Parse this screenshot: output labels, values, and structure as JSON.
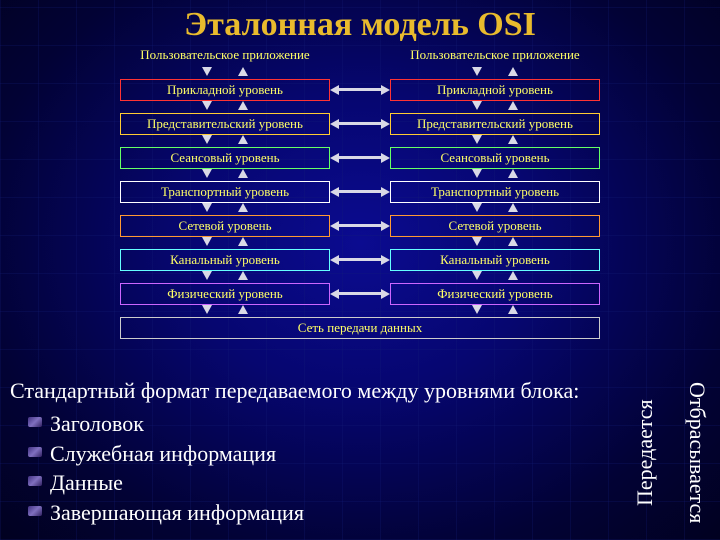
{
  "title": {
    "text": "Эталонная модель OSI",
    "color": "#e9bb2d",
    "fontsize": 34
  },
  "app_label": "Пользовательское приложение",
  "layers": [
    {
      "name": "Прикладной уровень",
      "border": "#ff3333"
    },
    {
      "name": "Представительский уровень",
      "border": "#ffcc33"
    },
    {
      "name": "Сеансовый уровень",
      "border": "#66ff66"
    },
    {
      "name": "Транспортный уровень",
      "border": "#ffffff"
    },
    {
      "name": "Сетевой уровень",
      "border": "#ff9933"
    },
    {
      "name": "Канальный уровень",
      "border": "#66ffff"
    },
    {
      "name": "Физический уровень",
      "border": "#cc66ff"
    }
  ],
  "network": {
    "name": "Сеть передачи данных",
    "border": "#cccccc"
  },
  "format": {
    "header": "Стандартный формат передаваемого между уровнями блока:",
    "items": [
      "Заголовок",
      "Служебная информация",
      "Данные",
      "Завершающая информация"
    ]
  },
  "sidelabels": {
    "left": "Передается",
    "right": "Отбрасывается"
  },
  "arrow_color": "#d9d9e6",
  "layer_text_color": "#ffff66",
  "background_base": "#03034a"
}
